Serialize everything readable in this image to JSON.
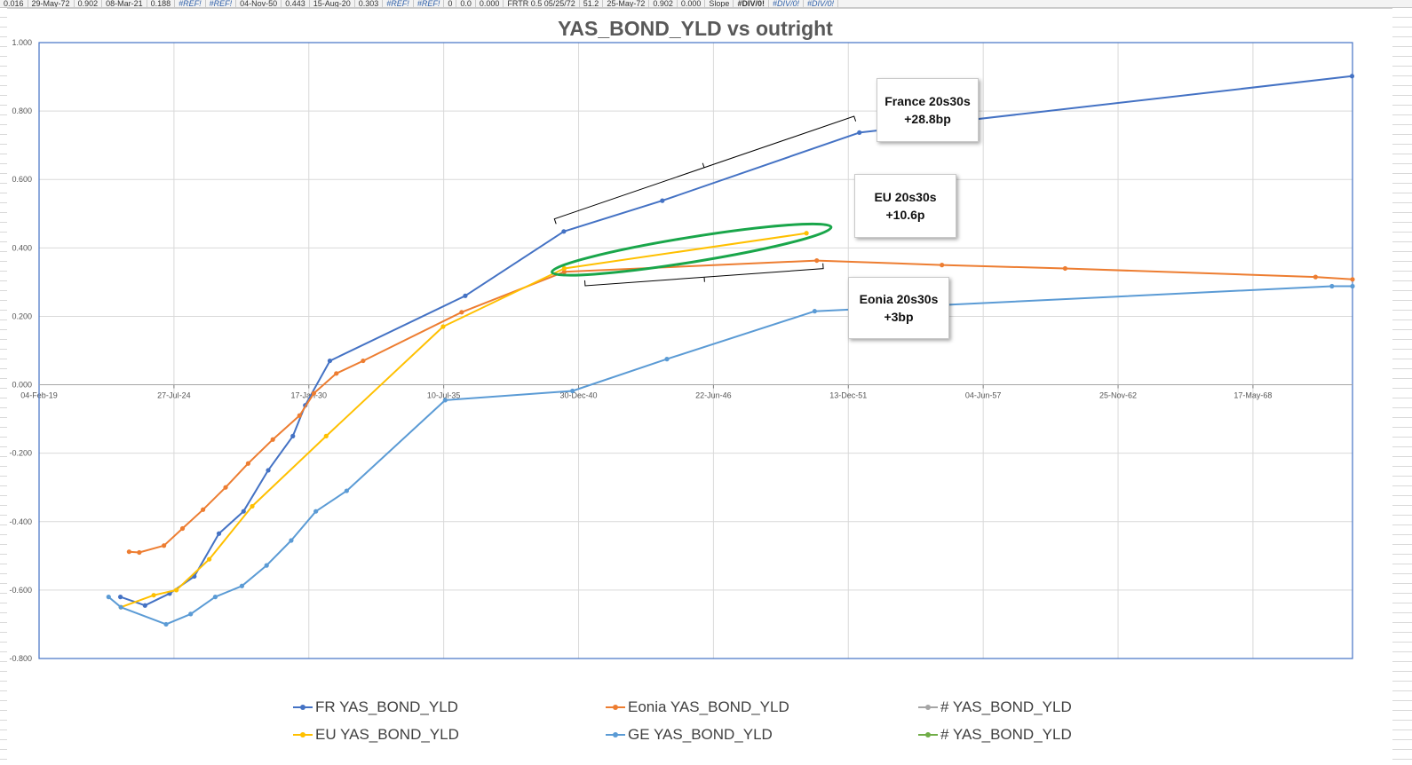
{
  "sheet_strip": [
    {
      "text": "0.016",
      "err": false,
      "bold": false
    },
    {
      "text": "29-May-72",
      "err": false,
      "bold": false
    },
    {
      "text": "0.902",
      "err": false,
      "bold": false
    },
    {
      "text": "08-Mar-21",
      "err": false,
      "bold": false
    },
    {
      "text": "0.188",
      "err": false,
      "bold": false
    },
    {
      "text": "#REF!",
      "err": true,
      "bold": false
    },
    {
      "text": "#REF!",
      "err": true,
      "bold": false
    },
    {
      "text": "04-Nov-50",
      "err": false,
      "bold": false
    },
    {
      "text": "0.443",
      "err": false,
      "bold": false
    },
    {
      "text": "15-Aug-20",
      "err": false,
      "bold": false
    },
    {
      "text": "0.303",
      "err": false,
      "bold": false
    },
    {
      "text": "#REF!",
      "err": true,
      "bold": false
    },
    {
      "text": "#REF!",
      "err": true,
      "bold": false
    },
    {
      "text": "0",
      "err": false,
      "bold": false
    },
    {
      "text": "0.0",
      "err": false,
      "bold": false
    },
    {
      "text": "0.000",
      "err": false,
      "bold": false
    },
    {
      "text": "FRTR 0.5 05/25/72",
      "err": false,
      "bold": false
    },
    {
      "text": "51.2",
      "err": false,
      "bold": false
    },
    {
      "text": "25-May-72",
      "err": false,
      "bold": false
    },
    {
      "text": "0.902",
      "err": false,
      "bold": false
    },
    {
      "text": "0.000",
      "err": false,
      "bold": false
    },
    {
      "text": "Slope",
      "err": false,
      "bold": false
    },
    {
      "text": "#DIV/0!",
      "err": false,
      "bold": true
    },
    {
      "text": "#DIV/0!",
      "err": true,
      "bold": false
    },
    {
      "text": "#DIV/0!",
      "err": true,
      "bold": false
    }
  ],
  "chart_data": {
    "type": "line",
    "title": "YAS_BOND_YLD vs outright",
    "xlabel": "",
    "ylabel": "",
    "x_axis": "date",
    "xlim": [
      "2019-02-04",
      "2072-06-01"
    ],
    "ylim": [
      -0.8,
      1.0
    ],
    "y_ticks": [
      1.0,
      0.8,
      0.6,
      0.4,
      0.2,
      0.0,
      -0.2,
      -0.4,
      -0.6,
      -0.8
    ],
    "y_tick_labels": [
      "1.000",
      "0.800",
      "0.600",
      "0.400",
      "0.200",
      "0.000",
      "-0.200",
      "-0.400",
      "-0.600",
      "-0.800"
    ],
    "x_ticks": [
      "2019-02-04",
      "2024-07-27",
      "2030-01-17",
      "2035-07-10",
      "2040-12-30",
      "2046-06-22",
      "2051-12-13",
      "2057-06-04",
      "2062-11-25",
      "2068-05-17"
    ],
    "x_tick_labels": [
      "04-Feb-19",
      "27-Jul-24",
      "17-Jan-30",
      "10-Jul-35",
      "30-Dec-40",
      "22-Jun-46",
      "13-Dec-51",
      "04-Jun-57",
      "25-Nov-62",
      "17-May-68"
    ],
    "grid": true,
    "legend_position": "bottom",
    "series": [
      {
        "name": "FR YAS_BOND_YLD",
        "color": "#4472C4",
        "x": [
          "2022-05-25",
          "2023-05-25",
          "2024-05-25",
          "2025-05-25",
          "2026-05-25",
          "2027-05-25",
          "2028-05-25",
          "2029-05-25",
          "2029-11-25",
          "2030-11-25",
          "2036-05-25",
          "2040-05-25",
          "2044-05-25",
          "2052-05-25",
          "2072-05-25"
        ],
        "y": [
          -0.62,
          -0.645,
          -0.61,
          -0.56,
          -0.435,
          -0.37,
          -0.25,
          -0.15,
          -0.06,
          0.07,
          0.26,
          0.448,
          0.538,
          0.737,
          0.902
        ]
      },
      {
        "name": "Eonia YAS_BOND_YLD",
        "color": "#ED7D31",
        "x": [
          "2022-10-01",
          "2023-03-01",
          "2024-03-01",
          "2024-12-01",
          "2025-10-01",
          "2026-09-01",
          "2027-08-01",
          "2028-08-01",
          "2029-09-01",
          "2030-04-01",
          "2031-03-01",
          "2032-04-01",
          "2036-04-01",
          "2040-06-01",
          "2050-09-01",
          "2055-10-01",
          "2060-10-01",
          "2070-12-01",
          "2072-06-01"
        ],
        "y": [
          -0.488,
          -0.49,
          -0.47,
          -0.42,
          -0.365,
          -0.3,
          -0.23,
          -0.16,
          -0.09,
          -0.025,
          0.033,
          0.07,
          0.212,
          0.33,
          0.363,
          0.35,
          0.34,
          0.315,
          0.308
        ]
      },
      {
        "name": "EU YAS_BOND_YLD",
        "color": "#FFC000",
        "x": [
          "2022-06-01",
          "2023-10-01",
          "2024-09-01",
          "2026-01-01",
          "2027-10-01",
          "2030-10-01",
          "2035-07-01",
          "2040-06-01",
          "2050-04-01"
        ],
        "y": [
          -0.65,
          -0.615,
          -0.6,
          -0.51,
          -0.355,
          -0.15,
          0.17,
          0.34,
          0.443
        ]
      },
      {
        "name": "GE YAS_BOND_YLD",
        "color": "#5B9BD5",
        "x": [
          "2021-12-01",
          "2022-06-01",
          "2024-04-01",
          "2025-04-01",
          "2026-04-01",
          "2027-05-01",
          "2028-05-01",
          "2029-05-01",
          "2030-05-01",
          "2031-08-01",
          "2035-08-01",
          "2040-10-01",
          "2044-08-01",
          "2050-08-01",
          "2071-08-01",
          "2072-06-01"
        ],
        "y": [
          -0.62,
          -0.65,
          -0.7,
          -0.67,
          -0.62,
          -0.588,
          -0.528,
          -0.455,
          -0.37,
          -0.31,
          -0.045,
          -0.018,
          0.075,
          0.215,
          0.288,
          0.288
        ]
      },
      {
        "name": "# YAS_BOND_YLD",
        "color": "#A5A5A5",
        "x": [],
        "y": []
      },
      {
        "name": "# YAS_BOND_YLD",
        "color": "#70AD47",
        "x": [],
        "y": []
      }
    ],
    "annotations": [
      {
        "id": "france",
        "line1": "France 20s30s",
        "line2": "+28.8bp"
      },
      {
        "id": "eu",
        "line1": "EU 20s30s",
        "line2": "+10.6p"
      },
      {
        "id": "eonia",
        "line1": "Eonia 20s30s",
        "line2": "+3bp"
      }
    ],
    "highlight_color": "#19A64A"
  }
}
